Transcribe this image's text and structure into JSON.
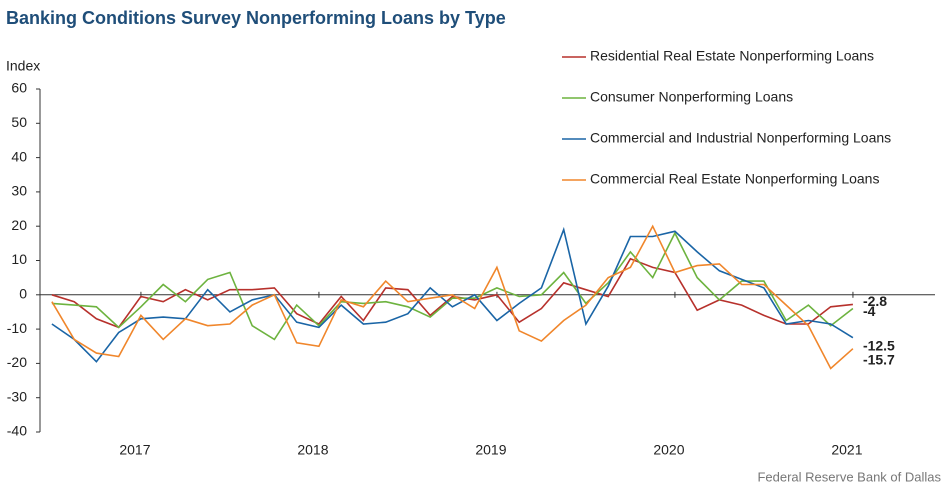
{
  "chart_data": {
    "type": "line",
    "title": "Banking Conditions Survey Nonperforming Loans by Type",
    "y_axis_label": "Index",
    "source": "Federal Reserve Bank of Dallas",
    "x": [
      2017,
      2017.125,
      2017.25,
      2017.375,
      2017.5,
      2017.625,
      2017.75,
      2017.875,
      2018,
      2018.125,
      2018.25,
      2018.375,
      2018.5,
      2018.625,
      2018.75,
      2018.875,
      2019,
      2019.125,
      2019.25,
      2019.375,
      2019.5,
      2019.625,
      2019.75,
      2019.875,
      2020,
      2020.125,
      2020.25,
      2020.375,
      2020.5,
      2020.625,
      2020.75,
      2020.875,
      2021,
      2021.125,
      2021.25,
      2021.375,
      2021.5
    ],
    "xlim": [
      2016.933,
      2021.961
    ],
    "xticks": [
      {
        "value": 2017.5,
        "label": "2017"
      },
      {
        "value": 2018.5,
        "label": "2018"
      },
      {
        "value": 2019.5,
        "label": "2019"
      },
      {
        "value": 2020.5,
        "label": "2020"
      },
      {
        "value": 2021.5,
        "label": "2021"
      }
    ],
    "ylim": [
      -40,
      60
    ],
    "yticks": [
      -40,
      -30,
      -20,
      -10,
      0,
      10,
      20,
      30,
      40,
      50,
      60
    ],
    "series": [
      {
        "name": "Residential Real Estate Nonperforming Loans",
        "color": "#b7312c",
        "values": [
          0,
          -2,
          -7,
          -9.5,
          -0.5,
          -2,
          1.5,
          -1.5,
          1.5,
          1.5,
          2,
          -5.5,
          -8.5,
          -0.5,
          -7.5,
          2,
          1.5,
          -6,
          -0.5,
          -1.5,
          0,
          -8,
          -4,
          3.5,
          1.5,
          -0.5,
          10.5,
          8,
          6.5,
          -4.5,
          -1.5,
          -3,
          -6,
          -8.5,
          -8.5,
          -3.5,
          -2.8
        ]
      },
      {
        "name": "Consumer Nonperforming Loans",
        "color": "#6db33f",
        "values": [
          -2.5,
          -3,
          -3.5,
          -9.5,
          -3.5,
          3,
          -2,
          4.5,
          6.5,
          -9,
          -13,
          -3,
          -9,
          -2,
          -2.5,
          -2,
          -3.5,
          -6.5,
          -1,
          -1,
          2,
          -0.5,
          0,
          6.5,
          -2.5,
          3.5,
          12.5,
          5,
          18,
          5,
          -1.5,
          4,
          4,
          -7.5,
          -3,
          -9,
          -4.0
        ]
      },
      {
        "name": "Commercial and Industrial Nonperforming Loans",
        "color": "#1a65a6",
        "values": [
          -8.5,
          -13,
          -19.5,
          -11,
          -7,
          -6.5,
          -7,
          1.5,
          -5,
          -1.5,
          0,
          -8,
          -9.5,
          -3,
          -8.5,
          -8,
          -5.5,
          2,
          -3.5,
          0,
          -7.5,
          -2.5,
          2,
          19,
          -8.5,
          2.5,
          17,
          17,
          18.5,
          12.5,
          7,
          4.5,
          2,
          -8.5,
          -7.5,
          -8.5,
          -12.5
        ]
      },
      {
        "name": "Commercial Real Estate Nonperforming Loans",
        "color": "#f0862b",
        "values": [
          -2,
          -13,
          -17,
          -18,
          -6,
          -13,
          -7,
          -9,
          -8.5,
          -3,
          0,
          -14,
          -15,
          -1.5,
          -3.5,
          4,
          -2,
          -1,
          0,
          -4,
          8,
          -10.5,
          -13.5,
          -7.5,
          -3,
          5,
          8,
          20,
          6.5,
          8.5,
          9,
          3,
          3,
          -3,
          -9,
          -21.5,
          -15.7
        ]
      }
    ]
  }
}
